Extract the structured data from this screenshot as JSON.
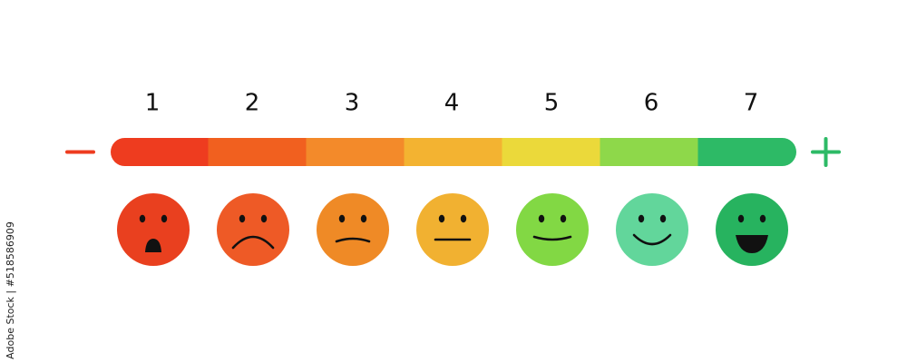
{
  "scale": {
    "items": [
      {
        "label": "1",
        "bar_color": "#ee3c1f",
        "face_color": "#e9401f"
      },
      {
        "label": "2",
        "bar_color": "#f1601f",
        "face_color": "#ee5a26"
      },
      {
        "label": "3",
        "bar_color": "#f38a2a",
        "face_color": "#ef8a26"
      },
      {
        "label": "4",
        "bar_color": "#f3b331",
        "face_color": "#f1b131"
      },
      {
        "label": "5",
        "bar_color": "#ebd93a",
        "face_color": "#82d844"
      },
      {
        "label": "6",
        "bar_color": "#8ed84a",
        "face_color": "#62d69b"
      },
      {
        "label": "7",
        "bar_color": "#2dba66",
        "face_color": "#27b35f"
      }
    ]
  },
  "watermark": "Adobe Stock | #518586909"
}
